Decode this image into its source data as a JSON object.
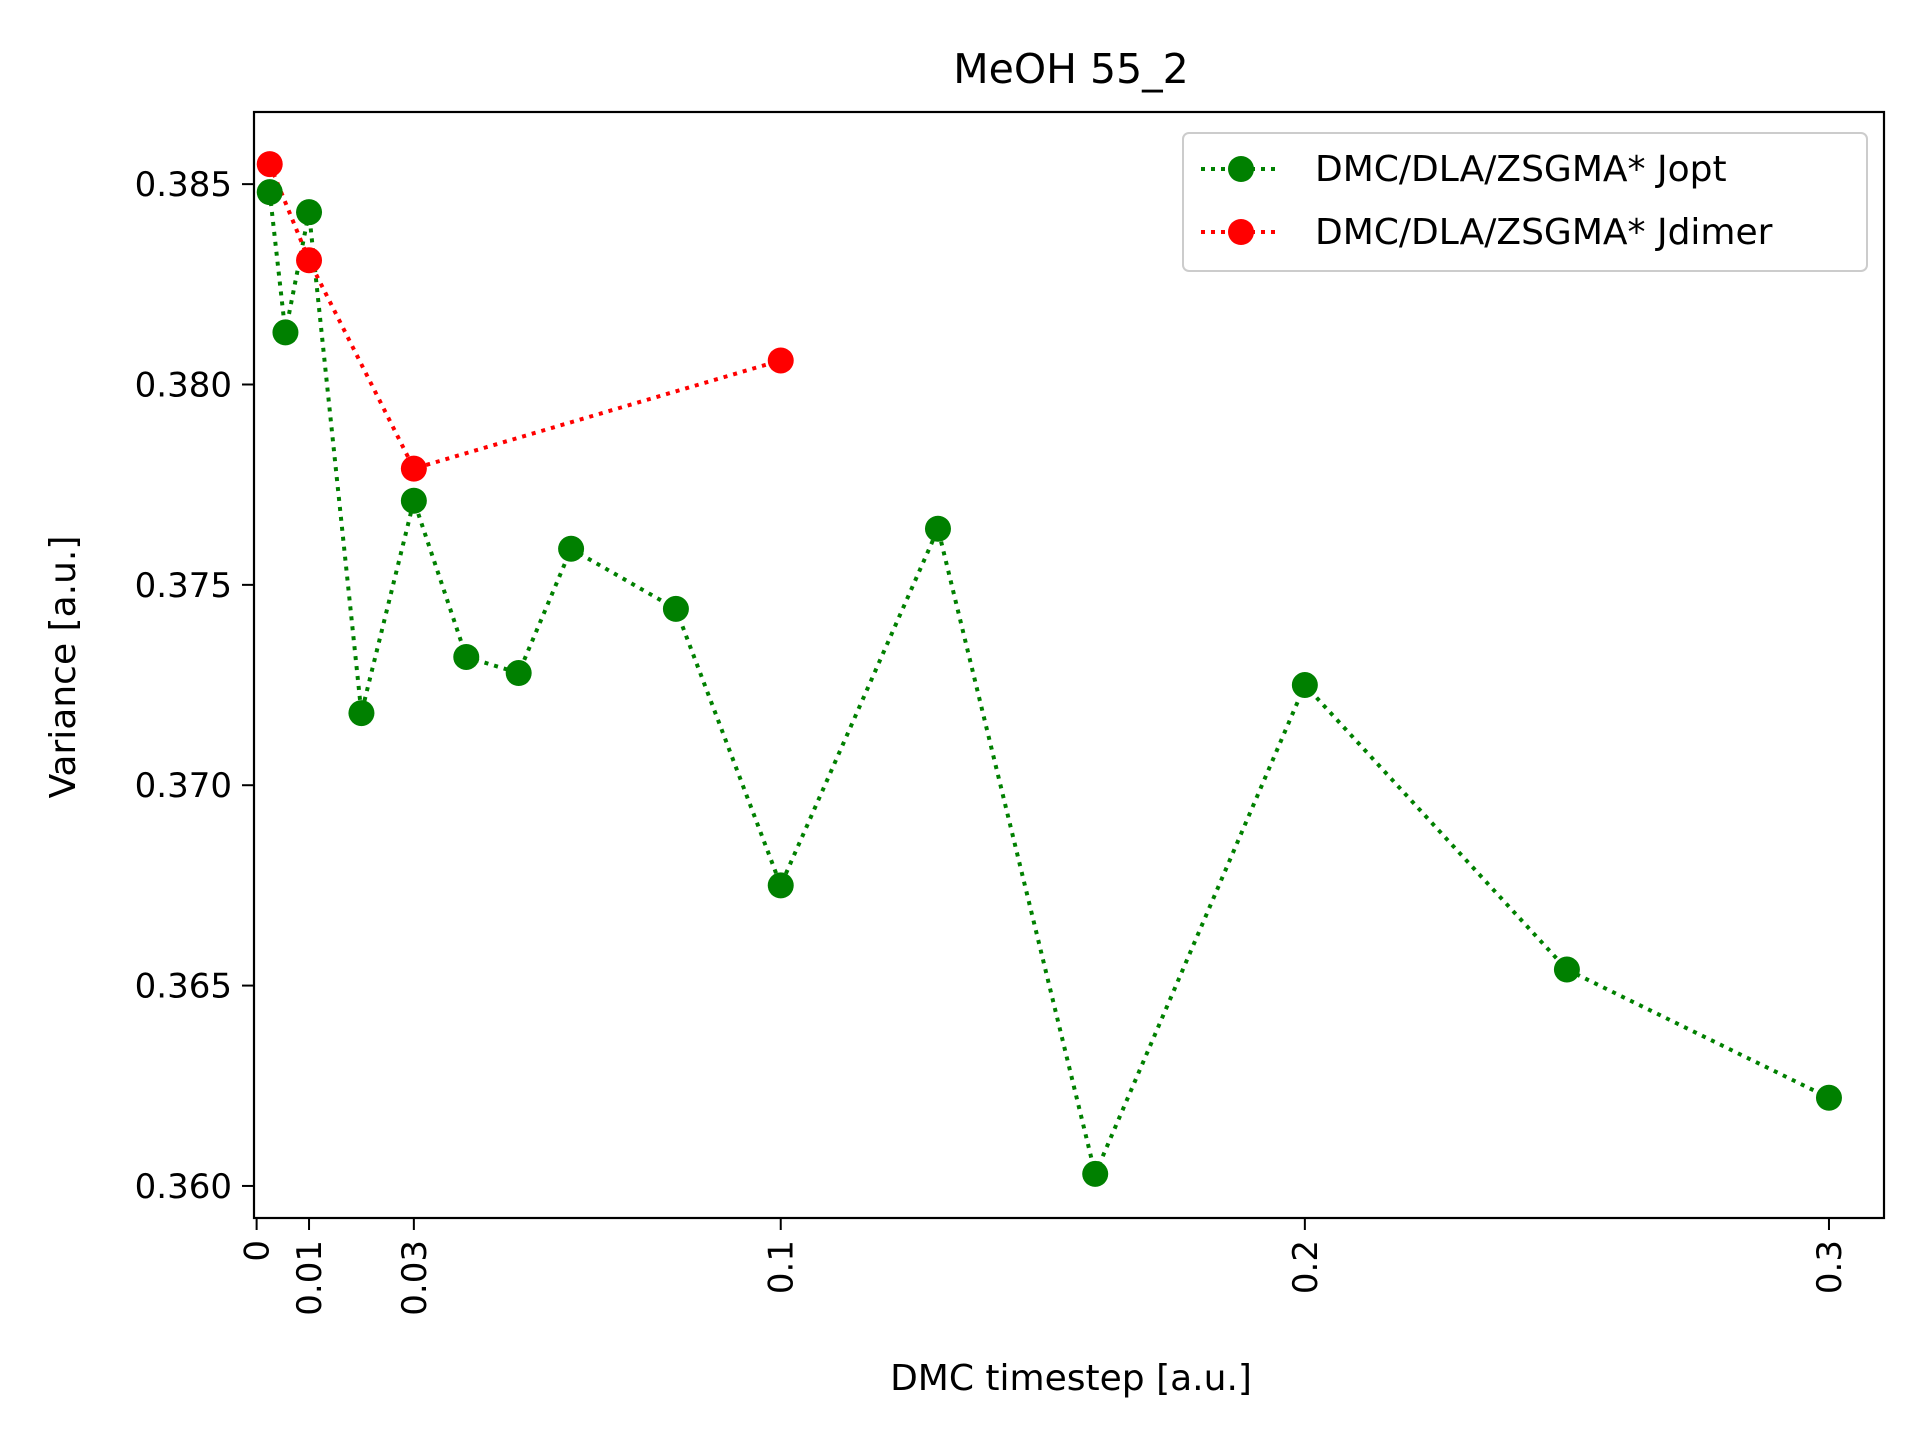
{
  "chart_data": {
    "type": "line",
    "title": "MeOH 55_2",
    "xlabel": "DMC timestep [a.u.]",
    "ylabel": "Variance [a.u.]",
    "xlim": [
      -0.0005,
      0.3105
    ],
    "ylim": [
      0.3592,
      0.3868
    ],
    "xticks": [
      {
        "value": 0,
        "label": "0"
      },
      {
        "value": 0.01,
        "label": "0.01"
      },
      {
        "value": 0.03,
        "label": "0.03"
      },
      {
        "value": 0.1,
        "label": "0.1"
      },
      {
        "value": 0.2,
        "label": "0.2"
      },
      {
        "value": 0.3,
        "label": "0.3"
      }
    ],
    "yticks": [
      {
        "value": 0.36,
        "label": "0.360"
      },
      {
        "value": 0.365,
        "label": "0.365"
      },
      {
        "value": 0.37,
        "label": "0.370"
      },
      {
        "value": 0.375,
        "label": "0.375"
      },
      {
        "value": 0.38,
        "label": "0.380"
      },
      {
        "value": 0.385,
        "label": "0.385"
      }
    ],
    "grid": false,
    "legend_position": "top-right",
    "series": [
      {
        "name": "DMC/DLA/ZSGMA* Jopt",
        "color": "#008000",
        "linestyle": "dotted",
        "marker": "circle",
        "x": [
          0.0025,
          0.0055,
          0.01,
          0.02,
          0.03,
          0.04,
          0.05,
          0.06,
          0.08,
          0.1,
          0.13,
          0.16,
          0.2,
          0.25,
          0.3
        ],
        "y": [
          0.3848,
          0.3813,
          0.3843,
          0.3718,
          0.3771,
          0.3732,
          0.3728,
          0.3759,
          0.3744,
          0.3675,
          0.3764,
          0.3603,
          0.3725,
          0.3654,
          0.3622
        ]
      },
      {
        "name": "DMC/DLA/ZSGMA* Jdimer",
        "color": "#ff0000",
        "linestyle": "dotted",
        "marker": "circle",
        "x": [
          0.0025,
          0.01,
          0.03,
          0.1
        ],
        "y": [
          0.3855,
          0.3831,
          0.3779,
          0.3806
        ]
      }
    ]
  }
}
